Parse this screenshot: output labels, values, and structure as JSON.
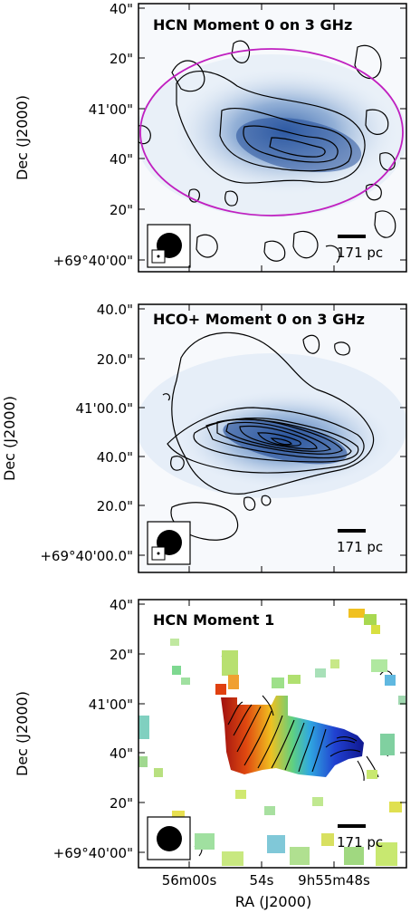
{
  "chart_data": [
    {
      "type": "heatmap",
      "title": "HCN Moment 0 on 3 GHz",
      "ylabel": "Dec (J2000)",
      "yticks": [
        "40\"",
        "20\"",
        "41'00\"",
        "40\"",
        "20\"",
        "+69°40'00\""
      ],
      "scalebar": "171 pc",
      "contours": true,
      "ellipse": true
    },
    {
      "type": "heatmap",
      "title": "HCO+ Moment 0 on 3 GHz",
      "ylabel": "Dec (J2000)",
      "yticks": [
        "40.0\"",
        "20.0\"",
        "41'00.0\"",
        "40.0\"",
        "20.0\"",
        "+69°40'00.0\""
      ],
      "scalebar": "171 pc",
      "contours": true
    },
    {
      "type": "heatmap",
      "title": "HCN Moment 1",
      "ylabel": "Dec (J2000)",
      "xlabel": "RA (J2000)",
      "yticks": [
        "40\"",
        "20\"",
        "41'00\"",
        "40\"",
        "20\"",
        "+69°40'00\""
      ],
      "xticks": [
        "56m00s",
        "54s",
        "9h55m48s"
      ],
      "scalebar": "171 pc",
      "contours": true
    }
  ]
}
